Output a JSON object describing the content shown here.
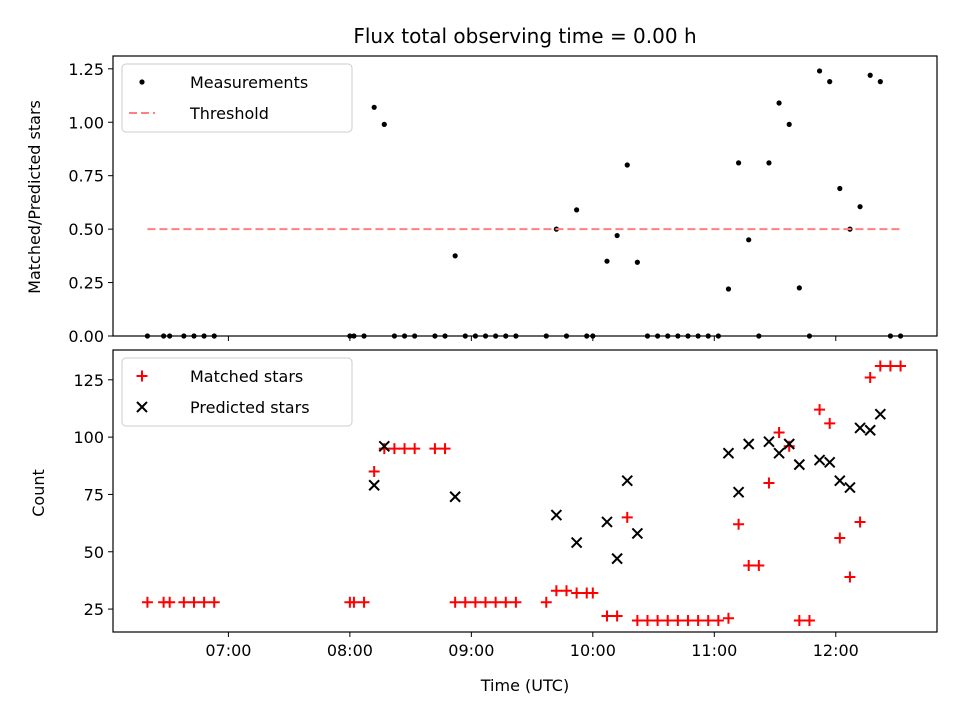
{
  "chart_data": [
    {
      "type": "scatter",
      "title": "Flux total observing time = 0.00 h",
      "xlabel": "",
      "ylabel": "Matched/Predicted stars",
      "x_type": "time",
      "xlim": [
        "06:03",
        "12:50"
      ],
      "ylim": [
        0,
        1.31
      ],
      "yticks": [
        0.0,
        0.25,
        0.5,
        0.75,
        1.0,
        1.25
      ],
      "ytick_labels": [
        "0.00",
        "0.25",
        "0.50",
        "0.75",
        "1.00",
        "1.25"
      ],
      "grid": false,
      "legend_position": "top-left",
      "series": [
        {
          "name": "Measurements",
          "marker": "dot",
          "color": "#000000",
          "points": [
            [
              "06:20",
              0
            ],
            [
              "06:28",
              0
            ],
            [
              "06:31",
              0
            ],
            [
              "06:38",
              0
            ],
            [
              "06:43",
              0
            ],
            [
              "06:48",
              0
            ],
            [
              "06:53",
              0
            ],
            [
              "08:00",
              0
            ],
            [
              "08:02",
              0
            ],
            [
              "08:07",
              0
            ],
            [
              "08:12",
              1.07
            ],
            [
              "08:17",
              0.99
            ],
            [
              "08:22",
              0
            ],
            [
              "08:27",
              0
            ],
            [
              "08:32",
              0
            ],
            [
              "08:42",
              0
            ],
            [
              "08:47",
              0
            ],
            [
              "08:52",
              0.375
            ],
            [
              "08:57",
              0
            ],
            [
              "09:02",
              0
            ],
            [
              "09:07",
              0
            ],
            [
              "09:12",
              0
            ],
            [
              "09:17",
              0
            ],
            [
              "09:22",
              0
            ],
            [
              "09:37",
              0
            ],
            [
              "09:42",
              0.5
            ],
            [
              "09:47",
              0
            ],
            [
              "09:52",
              0.59
            ],
            [
              "09:57",
              0
            ],
            [
              "10:00",
              0
            ],
            [
              "10:07",
              0.35
            ],
            [
              "10:12",
              0.47
            ],
            [
              "10:17",
              0.8
            ],
            [
              "10:22",
              0.345
            ],
            [
              "10:27",
              0
            ],
            [
              "10:32",
              0
            ],
            [
              "10:37",
              0
            ],
            [
              "10:42",
              0
            ],
            [
              "10:47",
              0
            ],
            [
              "10:52",
              0
            ],
            [
              "10:57",
              0
            ],
            [
              "11:02",
              0
            ],
            [
              "11:07",
              0.22
            ],
            [
              "11:12",
              0.81
            ],
            [
              "11:17",
              0.45
            ],
            [
              "11:22",
              0
            ],
            [
              "11:27",
              0.81
            ],
            [
              "11:32",
              1.09
            ],
            [
              "11:37",
              0.99
            ],
            [
              "11:42",
              0.225
            ],
            [
              "11:47",
              0
            ],
            [
              "11:52",
              1.24
            ],
            [
              "11:57",
              1.19
            ],
            [
              "12:02",
              0.69
            ],
            [
              "12:07",
              0.5
            ],
            [
              "12:12",
              0.605
            ],
            [
              "12:17",
              1.22
            ],
            [
              "12:22",
              1.19
            ],
            [
              "12:27",
              0
            ],
            [
              "12:32",
              0
            ]
          ]
        },
        {
          "name": "Threshold",
          "marker": "dashed-line",
          "color": "#ff8080",
          "points": [
            [
              "06:20",
              0.5
            ],
            [
              "12:33",
              0.5
            ]
          ]
        }
      ]
    },
    {
      "type": "scatter",
      "title": "",
      "xlabel": "Time (UTC)",
      "ylabel": "Count",
      "x_type": "time",
      "xlim": [
        "06:03",
        "12:50"
      ],
      "ylim": [
        15,
        138
      ],
      "yticks": [
        25,
        50,
        75,
        100,
        125
      ],
      "ytick_labels": [
        "25",
        "50",
        "75",
        "100",
        "125"
      ],
      "xticks": [
        "07:00",
        "08:00",
        "09:00",
        "10:00",
        "11:00",
        "12:00"
      ],
      "grid": false,
      "legend_position": "top-left",
      "series": [
        {
          "name": "Matched stars",
          "marker": "plus",
          "color": "#ff0000",
          "points": [
            [
              "06:20",
              28
            ],
            [
              "06:28",
              28
            ],
            [
              "06:31",
              28
            ],
            [
              "06:38",
              28
            ],
            [
              "06:43",
              28
            ],
            [
              "06:48",
              28
            ],
            [
              "06:53",
              28
            ],
            [
              "08:00",
              28
            ],
            [
              "08:02",
              28
            ],
            [
              "08:07",
              28
            ],
            [
              "08:12",
              85
            ],
            [
              "08:17",
              95
            ],
            [
              "08:22",
              95
            ],
            [
              "08:27",
              95
            ],
            [
              "08:32",
              95
            ],
            [
              "08:42",
              95
            ],
            [
              "08:47",
              95
            ],
            [
              "08:52",
              28
            ],
            [
              "08:57",
              28
            ],
            [
              "09:02",
              28
            ],
            [
              "09:07",
              28
            ],
            [
              "09:12",
              28
            ],
            [
              "09:17",
              28
            ],
            [
              "09:22",
              28
            ],
            [
              "09:37",
              28
            ],
            [
              "09:42",
              33
            ],
            [
              "09:47",
              33
            ],
            [
              "09:52",
              32
            ],
            [
              "09:57",
              32
            ],
            [
              "10:00",
              32
            ],
            [
              "10:07",
              22
            ],
            [
              "10:12",
              22
            ],
            [
              "10:17",
              65
            ],
            [
              "10:22",
              20
            ],
            [
              "10:27",
              20
            ],
            [
              "10:32",
              20
            ],
            [
              "10:37",
              20
            ],
            [
              "10:42",
              20
            ],
            [
              "10:47",
              20
            ],
            [
              "10:52",
              20
            ],
            [
              "10:57",
              20
            ],
            [
              "11:02",
              20
            ],
            [
              "11:07",
              21
            ],
            [
              "11:12",
              62
            ],
            [
              "11:17",
              44
            ],
            [
              "11:22",
              44
            ],
            [
              "11:27",
              80
            ],
            [
              "11:32",
              102
            ],
            [
              "11:37",
              96
            ],
            [
              "11:42",
              20
            ],
            [
              "11:47",
              20
            ],
            [
              "11:52",
              112
            ],
            [
              "11:57",
              106
            ],
            [
              "12:02",
              56
            ],
            [
              "12:07",
              39
            ],
            [
              "12:12",
              63
            ],
            [
              "12:17",
              126
            ],
            [
              "12:22",
              131
            ],
            [
              "12:27",
              131
            ],
            [
              "12:32",
              131
            ]
          ]
        },
        {
          "name": "Predicted stars",
          "marker": "x",
          "color": "#000000",
          "points": [
            [
              "08:12",
              79
            ],
            [
              "08:17",
              96
            ],
            [
              "08:52",
              74
            ],
            [
              "09:42",
              66
            ],
            [
              "09:52",
              54
            ],
            [
              "10:07",
              63
            ],
            [
              "10:12",
              47
            ],
            [
              "10:17",
              81
            ],
            [
              "10:22",
              58
            ],
            [
              "11:07",
              93
            ],
            [
              "11:12",
              76
            ],
            [
              "11:17",
              97
            ],
            [
              "11:27",
              98
            ],
            [
              "11:32",
              93
            ],
            [
              "11:37",
              97
            ],
            [
              "11:42",
              88
            ],
            [
              "11:52",
              90
            ],
            [
              "11:57",
              89
            ],
            [
              "12:02",
              81
            ],
            [
              "12:07",
              78
            ],
            [
              "12:12",
              104
            ],
            [
              "12:17",
              103
            ],
            [
              "12:22",
              110
            ]
          ]
        }
      ]
    }
  ]
}
